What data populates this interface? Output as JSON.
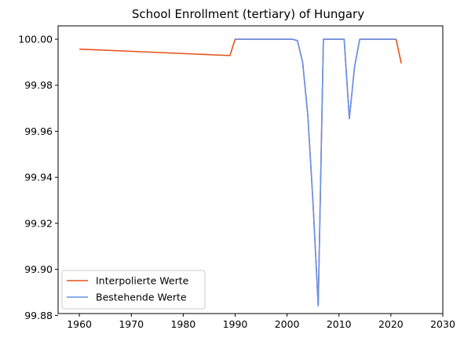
{
  "chart_data": {
    "type": "line",
    "title": "School Enrollment (tertiary) of Hungary",
    "xlabel": "",
    "ylabel": "",
    "xlim": [
      1955.9,
      2030
    ],
    "ylim": [
      99.8808,
      100.0058
    ],
    "x_ticks": [
      1960,
      1970,
      1980,
      1990,
      2000,
      2010,
      2020,
      2030
    ],
    "y_ticks": [
      99.88,
      99.9,
      99.92,
      99.94,
      99.96,
      99.98,
      100.0
    ],
    "grid": false,
    "legend_position": "lower-left",
    "series": [
      {
        "name": "Interpolierte Werte",
        "color": "#e8501a",
        "x": [
          1960,
          1989,
          1990,
          2001,
          2002,
          2003,
          2004,
          2005,
          2006,
          2007,
          2010,
          2011,
          2012,
          2013,
          2014,
          2021,
          2022
        ],
        "y": [
          99.9957,
          99.9929,
          100.0,
          100.0,
          99.9994,
          99.99,
          99.967,
          99.929,
          99.8842,
          100.0,
          100.0,
          100.0,
          99.9655,
          99.988,
          100.0,
          100.0,
          99.9895
        ]
      },
      {
        "name": "Bestehende Werte",
        "color": "#6495ed",
        "x": [
          1990,
          2001,
          2002,
          2003,
          2004,
          2005,
          2006,
          2007,
          2010,
          2011,
          2012,
          2013,
          2014,
          2021
        ],
        "y": [
          100.0,
          100.0,
          99.9994,
          99.99,
          99.967,
          99.929,
          99.8842,
          100.0,
          100.0,
          100.0,
          99.9655,
          99.988,
          100.0,
          100.0
        ]
      }
    ]
  }
}
